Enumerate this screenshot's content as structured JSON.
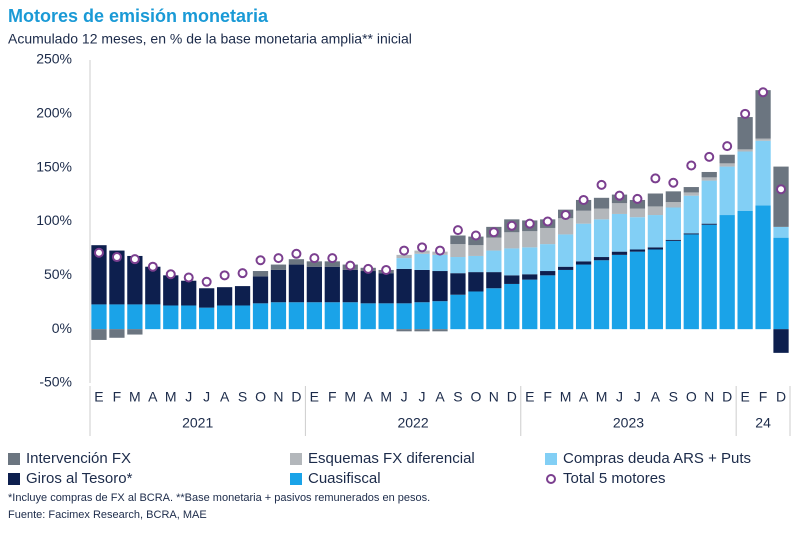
{
  "chart_data": {
    "type": "bar",
    "stacked": true,
    "title": "Motores de emisión monetaria",
    "subtitle": "Acumulado 12 meses, en % de la base monetaria amplia** inicial",
    "groups": [
      {
        "label": "2021",
        "categories": [
          "E",
          "F",
          "M",
          "A",
          "M",
          "J",
          "J",
          "A",
          "S",
          "O",
          "N",
          "D"
        ]
      },
      {
        "label": "2022",
        "categories": [
          "E",
          "F",
          "M",
          "A",
          "M",
          "J",
          "J",
          "A",
          "S",
          "O",
          "N",
          "D"
        ]
      },
      {
        "label": "2023",
        "categories": [
          "E",
          "F",
          "M",
          "A",
          "M",
          "J",
          "J",
          "A",
          "S",
          "O",
          "N",
          "D"
        ]
      },
      {
        "label": "24",
        "categories": [
          "E",
          "F",
          "D"
        ]
      }
    ],
    "ylim": [
      -50,
      250
    ],
    "yticks": [
      {
        "value": -50,
        "label": "-50%"
      },
      {
        "value": 0,
        "label": "0%"
      },
      {
        "value": 50,
        "label": "50%"
      },
      {
        "value": 100,
        "label": "100%"
      },
      {
        "value": 150,
        "label": "150%"
      },
      {
        "value": 200,
        "label": "200%"
      },
      {
        "value": 250,
        "label": "250%"
      }
    ],
    "series": [
      {
        "name": "Intervención FX",
        "color": "#6b7580",
        "values": [
          -10,
          -8,
          -5,
          0,
          0,
          0,
          0,
          0,
          0,
          5,
          5,
          5,
          5,
          5,
          5,
          3,
          3,
          -2,
          -2,
          -2,
          8,
          8,
          10,
          12,
          10,
          8,
          8,
          10,
          10,
          8,
          8,
          12,
          10,
          5,
          5,
          8,
          30,
          45,
          56
        ]
      },
      {
        "name": "Esquemas FX diferencial",
        "color": "#b3b7bb",
        "values": [
          0,
          0,
          0,
          0,
          0,
          0,
          0,
          0,
          0,
          0,
          0,
          0,
          0,
          0,
          0,
          0,
          0,
          3,
          3,
          3,
          12,
          10,
          12,
          15,
          15,
          15,
          15,
          12,
          10,
          10,
          8,
          8,
          5,
          3,
          3,
          3,
          2,
          2,
          0
        ]
      },
      {
        "name": "Compras deuda ARS + Puts",
        "color": "#82cff5",
        "values": [
          0,
          0,
          0,
          0,
          0,
          0,
          0,
          0,
          0,
          0,
          0,
          0,
          0,
          0,
          0,
          0,
          0,
          10,
          15,
          15,
          15,
          15,
          20,
          25,
          25,
          25,
          30,
          35,
          35,
          35,
          30,
          30,
          30,
          35,
          40,
          45,
          55,
          60,
          10
        ]
      },
      {
        "name": "Giros al Tesoro*",
        "color": "#0d1f4e",
        "values": [
          55,
          50,
          45,
          35,
          28,
          23,
          18,
          17,
          18,
          25,
          30,
          35,
          33,
          33,
          30,
          30,
          28,
          32,
          30,
          28,
          20,
          18,
          15,
          8,
          5,
          4,
          3,
          3,
          3,
          3,
          2,
          2,
          1,
          1,
          1,
          0,
          0,
          0,
          -22
        ]
      },
      {
        "name": "Cuasifiscal",
        "color": "#1aa3e8",
        "values": [
          23,
          23,
          23,
          23,
          22,
          22,
          20,
          22,
          22,
          24,
          25,
          25,
          25,
          25,
          25,
          24,
          24,
          24,
          25,
          26,
          32,
          35,
          38,
          42,
          46,
          50,
          55,
          60,
          64,
          69,
          72,
          74,
          82,
          88,
          97,
          106,
          110,
          115,
          85
        ]
      },
      {
        "name": "Total 5 motores",
        "type": "scatter",
        "color": "#7b3f8f",
        "values": [
          71,
          67,
          65,
          58,
          51,
          48,
          44,
          50,
          52,
          64,
          66,
          70,
          66,
          66,
          59,
          56,
          55,
          73,
          76,
          73,
          92,
          87,
          90,
          96,
          98,
          100,
          106,
          120,
          134,
          124,
          121,
          140,
          136,
          152,
          160,
          170,
          200,
          220,
          130
        ]
      }
    ],
    "notes": [
      "*Incluye compras de FX al BCRA. **Base monetaria + pasivos remunerados en pesos.",
      "Fuente: Facimex Research, BCRA, MAE"
    ]
  }
}
